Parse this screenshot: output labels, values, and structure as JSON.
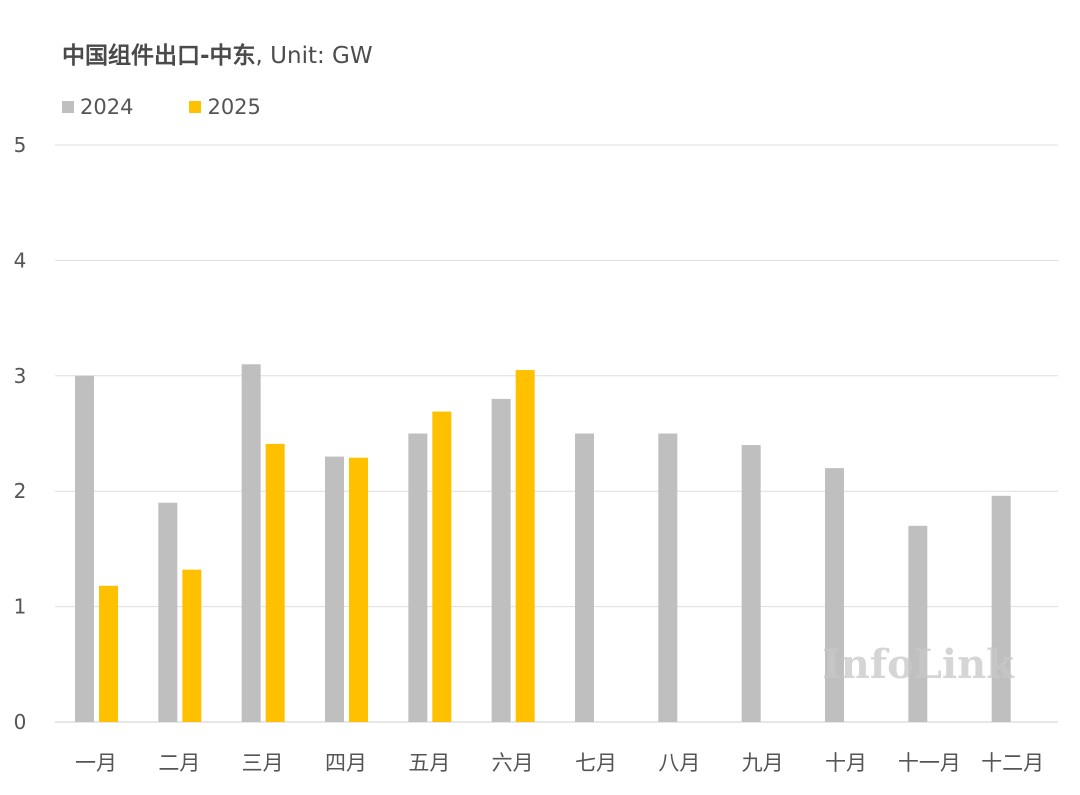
{
  "chart_data": {
    "type": "bar",
    "title_main": "中国组件出口-中东",
    "title_unit": ", Unit: GW",
    "categories": [
      "一月",
      "二月",
      "三月",
      "四月",
      "五月",
      "六月",
      "七月",
      "八月",
      "九月",
      "十月",
      "十一月",
      "十二月"
    ],
    "series": [
      {
        "name": "2024",
        "color": "#bfbfbf",
        "values": [
          3.0,
          1.9,
          3.1,
          2.3,
          2.5,
          2.8,
          2.5,
          2.5,
          2.4,
          2.2,
          1.7,
          1.96
        ]
      },
      {
        "name": "2025",
        "color": "#ffc000",
        "values": [
          1.18,
          1.32,
          2.41,
          2.29,
          2.69,
          3.05,
          null,
          null,
          null,
          null,
          null,
          null
        ]
      }
    ],
    "ylim": [
      0,
      5
    ],
    "yticks": [
      0,
      1,
      2,
      3,
      4,
      5
    ],
    "grid": true,
    "legend_position": "top-left",
    "watermark": "InfoLink"
  }
}
